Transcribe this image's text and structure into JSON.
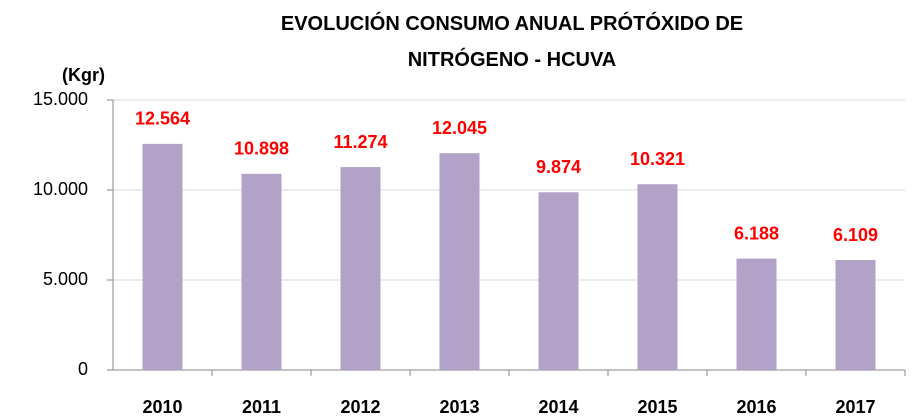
{
  "chart_data": {
    "type": "bar",
    "title": "EVOLUCIÓN CONSUMO ANUAL PRÓTÓXIDO DE NITRÓGENO - HCUVA",
    "y_label": "(Kgr)",
    "categories": [
      "2010",
      "2011",
      "2012",
      "2013",
      "2014",
      "2015",
      "2016",
      "2017"
    ],
    "values": [
      12564,
      10898,
      11274,
      12045,
      9874,
      10321,
      6188,
      6109
    ],
    "value_labels": [
      "12.564",
      "10.898",
      "11.274",
      "12.045",
      "9.874",
      "10.321",
      "6.188",
      "6.109"
    ],
    "color": "#b3a2c7",
    "label_color": "#ff0000",
    "ylim": [
      0,
      15000
    ],
    "yticks": [
      0,
      {
        "value": 5000,
        "label": "5.000"
      },
      {
        "value": 10000,
        "label": "10.000"
      },
      {
        "value": 15000,
        "label": "15.000"
      }
    ],
    "grid": true
  }
}
